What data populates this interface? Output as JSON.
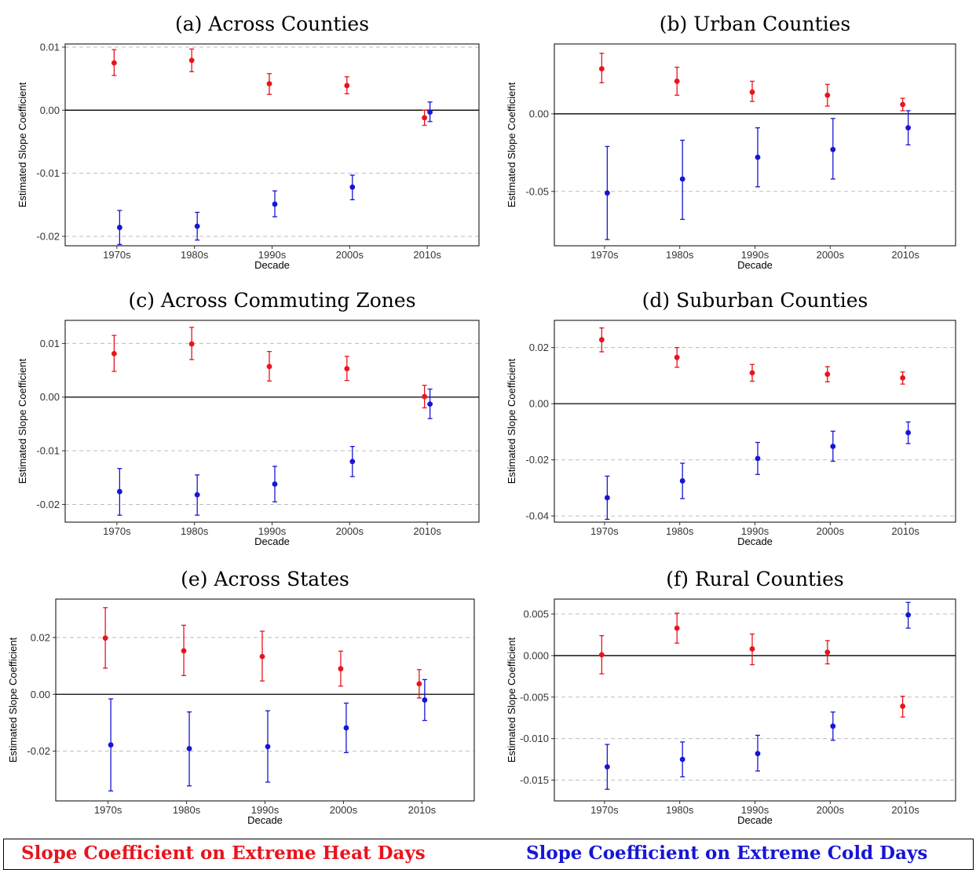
{
  "legend": {
    "heat": "Slope Coefficient on Extreme Heat Days",
    "cold": "Slope Coefficient on Extreme Cold Days"
  },
  "colors": {
    "heat": "#e8141c",
    "cold": "#1616d4",
    "grid": "#bdbdbd"
  },
  "chart_data": [
    {
      "type": "scatter",
      "title": "(a) Across Counties",
      "xlabel": "Decade",
      "ylabel": "Estimated Slope Coefficient",
      "categories": [
        "1970s",
        "1980s",
        "1990s",
        "2000s",
        "2010s"
      ],
      "ylim": [
        -0.0215,
        0.0105
      ],
      "yticks": [
        0.01,
        0.0,
        -0.01,
        -0.02
      ],
      "yticklabels": [
        "0.01",
        "0.00",
        "-0.01",
        "-0.02"
      ],
      "zero_line": true,
      "series": [
        {
          "key": "heat",
          "values": [
            0.0075,
            0.0079,
            0.0042,
            0.0039,
            -0.0012
          ],
          "lower": [
            0.0055,
            0.0061,
            0.0025,
            0.0026,
            -0.0024
          ],
          "upper": [
            0.0096,
            0.0097,
            0.0058,
            0.0053,
            0.0
          ]
        },
        {
          "key": "cold",
          "values": [
            -0.0186,
            -0.0184,
            -0.0149,
            -0.0122,
            -0.0003
          ],
          "lower": [
            -0.0213,
            -0.0206,
            -0.0169,
            -0.0142,
            -0.0018
          ],
          "upper": [
            -0.0159,
            -0.0162,
            -0.0128,
            -0.0103,
            0.0013
          ]
        }
      ]
    },
    {
      "type": "scatter",
      "title": "(b) Urban Counties",
      "xlabel": "Decade",
      "ylabel": "Estimated Slope Coefficient",
      "categories": [
        "1970s",
        "1980s",
        "1990s",
        "2000s",
        "2010s"
      ],
      "ylim": [
        -0.085,
        0.045
      ],
      "yticks": [
        0.0,
        -0.05
      ],
      "yticklabels": [
        "0.00",
        "-0.05"
      ],
      "zero_line": true,
      "series": [
        {
          "key": "heat",
          "values": [
            0.029,
            0.021,
            0.014,
            0.012,
            0.006
          ],
          "lower": [
            0.02,
            0.012,
            0.008,
            0.005,
            0.002
          ],
          "upper": [
            0.039,
            0.03,
            0.021,
            0.019,
            0.01
          ]
        },
        {
          "key": "cold",
          "values": [
            -0.051,
            -0.042,
            -0.028,
            -0.023,
            -0.009
          ],
          "lower": [
            -0.081,
            -0.068,
            -0.047,
            -0.042,
            -0.02
          ],
          "upper": [
            -0.021,
            -0.017,
            -0.009,
            -0.003,
            0.002
          ]
        }
      ]
    },
    {
      "type": "scatter",
      "title": "(c) Across Commuting Zones",
      "xlabel": "Decade",
      "ylabel": "Estimated Slope Coefficient",
      "categories": [
        "1970s",
        "1980s",
        "1990s",
        "2000s",
        "2010s"
      ],
      "ylim": [
        -0.0233,
        0.0143
      ],
      "yticks": [
        0.01,
        0.0,
        -0.01,
        -0.02
      ],
      "yticklabels": [
        "0.01",
        "0.00",
        "-0.01",
        "-0.02"
      ],
      "zero_line": true,
      "series": [
        {
          "key": "heat",
          "values": [
            0.0081,
            0.0099,
            0.0057,
            0.0053,
            0.0001
          ],
          "lower": [
            0.0048,
            0.007,
            0.003,
            0.0031,
            -0.002
          ],
          "upper": [
            0.0115,
            0.013,
            0.0085,
            0.0076,
            0.0022
          ]
        },
        {
          "key": "cold",
          "values": [
            -0.0176,
            -0.0182,
            -0.0162,
            -0.012,
            -0.0013
          ],
          "lower": [
            -0.022,
            -0.022,
            -0.0195,
            -0.0148,
            -0.004
          ],
          "upper": [
            -0.0133,
            -0.0145,
            -0.0129,
            -0.0092,
            0.0015
          ]
        }
      ]
    },
    {
      "type": "scatter",
      "title": "(d) Suburban Counties",
      "xlabel": "Decade",
      "ylabel": "Estimated Slope Coefficient",
      "categories": [
        "1970s",
        "1980s",
        "1990s",
        "2000s",
        "2010s"
      ],
      "ylim": [
        -0.0422,
        0.0297
      ],
      "yticks": [
        0.02,
        0.0,
        -0.02,
        -0.04
      ],
      "yticklabels": [
        "0.02",
        "0.00",
        "-0.02",
        "-0.04"
      ],
      "zero_line": true,
      "series": [
        {
          "key": "heat",
          "values": [
            0.0228,
            0.0165,
            0.011,
            0.0105,
            0.0092
          ],
          "lower": [
            0.0185,
            0.013,
            0.008,
            0.0078,
            0.007
          ],
          "upper": [
            0.027,
            0.02,
            0.014,
            0.0132,
            0.0113
          ]
        },
        {
          "key": "cold",
          "values": [
            -0.0335,
            -0.0275,
            -0.0195,
            -0.0152,
            -0.0103
          ],
          "lower": [
            -0.0412,
            -0.0338,
            -0.0252,
            -0.0205,
            -0.0142
          ],
          "upper": [
            -0.0258,
            -0.0212,
            -0.0138,
            -0.0098,
            -0.0065
          ]
        }
      ]
    },
    {
      "type": "scatter",
      "title": "(e) Across States",
      "xlabel": "Decade",
      "ylabel": "Estimated Slope Coefficient",
      "categories": [
        "1970s",
        "1980s",
        "1990s",
        "2000s",
        "2010s"
      ],
      "ylim": [
        -0.0375,
        0.0335
      ],
      "yticks": [
        0.02,
        0.0,
        -0.02
      ],
      "yticklabels": [
        "0.02",
        "0.00",
        "-0.02"
      ],
      "zero_line": true,
      "series": [
        {
          "key": "heat",
          "values": [
            0.0198,
            0.0153,
            0.0133,
            0.009,
            0.0037
          ],
          "lower": [
            0.0092,
            0.0066,
            0.0047,
            0.0029,
            -0.0013
          ],
          "upper": [
            0.0305,
            0.0243,
            0.0222,
            0.0152,
            0.0087
          ]
        },
        {
          "key": "cold",
          "values": [
            -0.0178,
            -0.0191,
            -0.0184,
            -0.0118,
            -0.002
          ],
          "lower": [
            -0.034,
            -0.0322,
            -0.0309,
            -0.0205,
            -0.0092
          ],
          "upper": [
            -0.0016,
            -0.0062,
            -0.0058,
            -0.0031,
            0.0052
          ]
        }
      ]
    },
    {
      "type": "scatter",
      "title": "(f) Rural Counties",
      "xlabel": "Decade",
      "ylabel": "Estimated Slope Coefficient",
      "categories": [
        "1970s",
        "1980s",
        "1990s",
        "2000s",
        "2010s"
      ],
      "ylim": [
        -0.0175,
        0.0068
      ],
      "yticks": [
        0.005,
        0.0,
        -0.005,
        -0.01,
        -0.015
      ],
      "yticklabels": [
        "0.005",
        "0.000",
        "-0.005",
        "-0.010",
        "-0.015"
      ],
      "zero_line": true,
      "series": [
        {
          "key": "heat",
          "values": [
            0.0001,
            0.0033,
            0.0008,
            0.0004,
            -0.0061
          ],
          "lower": [
            -0.0022,
            0.0015,
            -0.0011,
            -0.001,
            -0.0074
          ],
          "upper": [
            0.0024,
            0.0051,
            0.0026,
            0.0018,
            -0.0049
          ]
        },
        {
          "key": "cold",
          "values": [
            -0.0134,
            -0.0125,
            -0.0118,
            -0.0085,
            0.0049
          ],
          "lower": [
            -0.0161,
            -0.0146,
            -0.0139,
            -0.0102,
            0.0033
          ],
          "upper": [
            -0.0107,
            -0.0104,
            -0.0096,
            -0.0068,
            0.0064
          ]
        }
      ]
    }
  ]
}
